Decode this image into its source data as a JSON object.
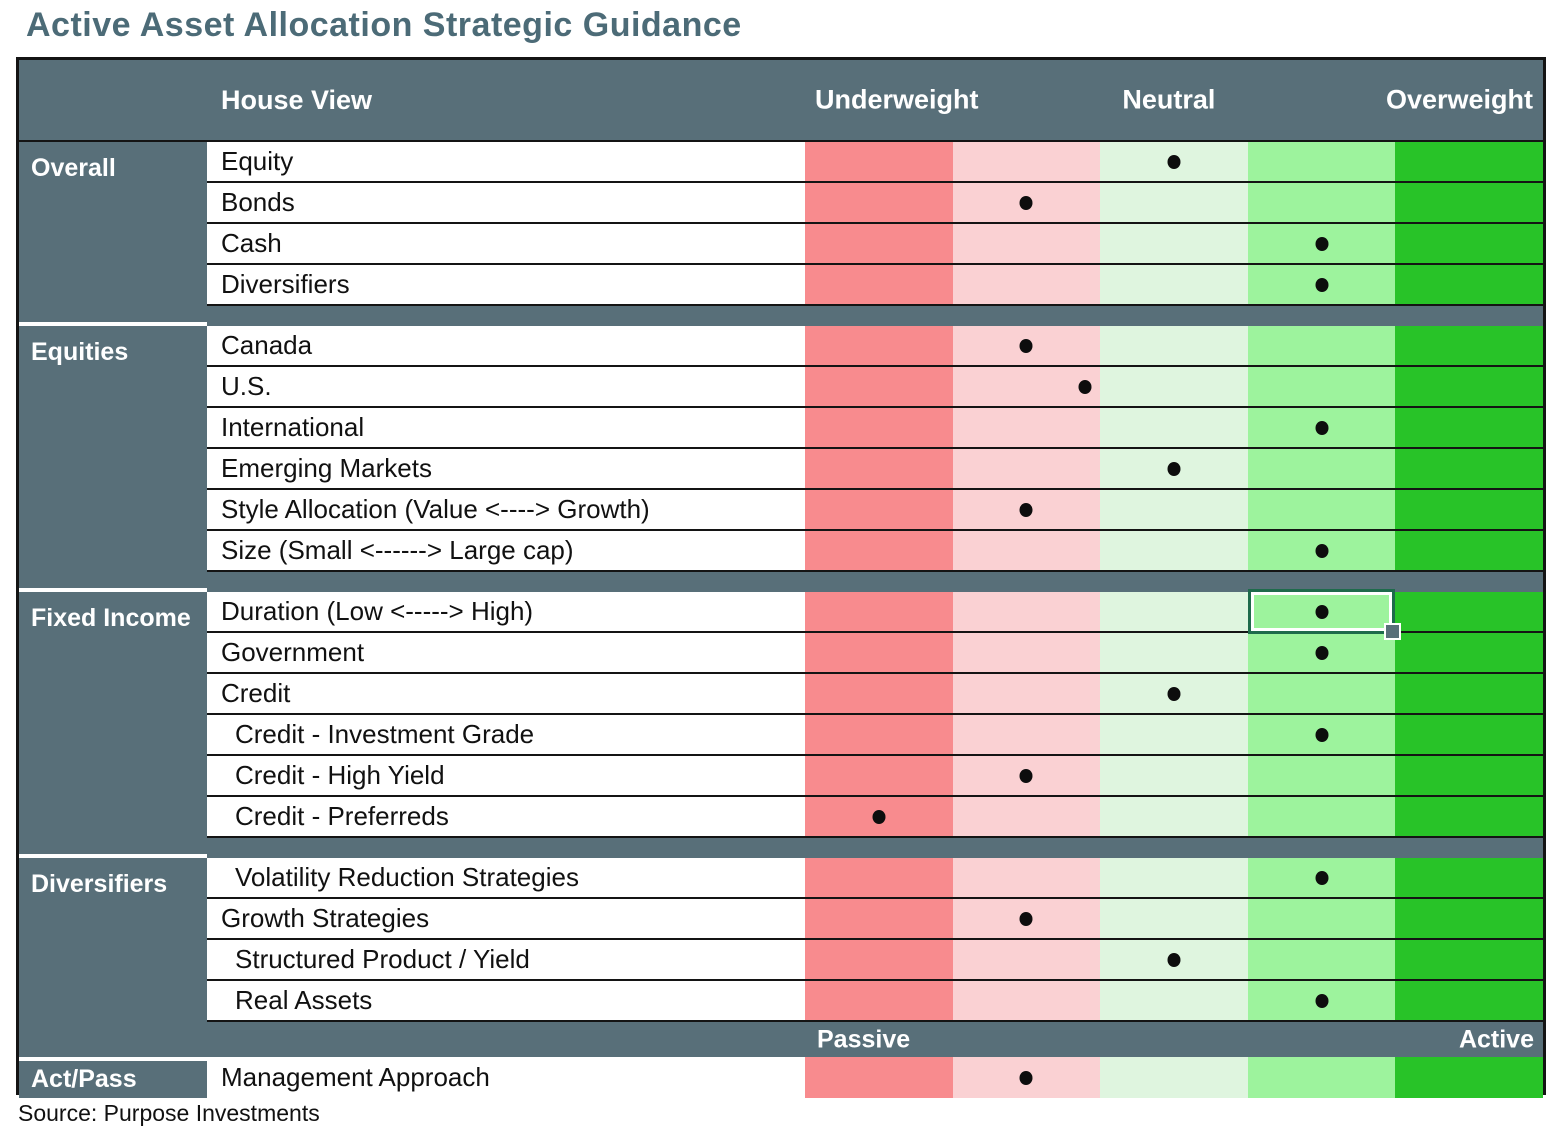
{
  "title": "Active Asset Allocation Strategic Guidance",
  "source": "Source: Purpose Investments",
  "header": {
    "house_view": "House View",
    "underweight": "Underweight",
    "neutral": "Neutral",
    "overweight": "Overweight"
  },
  "band": {
    "passive": "Passive",
    "active": "Active"
  },
  "colors": {
    "slate": "#586F79",
    "title_text": "#4C6B77",
    "line": "#141414",
    "dot": "#0D0D0D",
    "scale": [
      "#F88B8E",
      "#FAD1D3",
      "#DFF5DF",
      "#9DF39D",
      "#28C328"
    ],
    "selection_border": "#1E6B4B",
    "selection_handle": "#586F79"
  },
  "chart_data": {
    "type": "heatmap",
    "title": "Active Asset Allocation Strategic Guidance",
    "column_headers": [
      "Underweight",
      "Neutral",
      "Overweight"
    ],
    "scale_note": "5 shaded columns from strong underweight (red) to strong overweight (green); dot position is percent across the strip, column centers at 10/30/50/70/90",
    "sections": [
      {
        "category": "Overall",
        "rows": [
          {
            "label": "Equity",
            "position_pct": 50
          },
          {
            "label": "Bonds",
            "position_pct": 30
          },
          {
            "label": "Cash",
            "position_pct": 70
          },
          {
            "label": "Diversifiers",
            "position_pct": 70
          }
        ]
      },
      {
        "category": "Equities",
        "rows": [
          {
            "label": "Canada",
            "position_pct": 30
          },
          {
            "label": "U.S.",
            "position_pct": 38
          },
          {
            "label": "International",
            "position_pct": 70
          },
          {
            "label": "Emerging Markets",
            "position_pct": 50
          },
          {
            "label": "Style Allocation (Value <----> Growth)",
            "position_pct": 30
          },
          {
            "label": "Size (Small <------>  Large cap)",
            "position_pct": 70
          }
        ]
      },
      {
        "category": "Fixed Income",
        "rows": [
          {
            "label": "Duration (Low <-----> High)",
            "position_pct": 70,
            "selected": true
          },
          {
            "label": "Government",
            "position_pct": 70
          },
          {
            "label": "Credit",
            "position_pct": 50
          },
          {
            "label": "Credit - Investment Grade",
            "position_pct": 70,
            "indent": true
          },
          {
            "label": "Credit - High Yield",
            "position_pct": 30,
            "indent": true
          },
          {
            "label": "Credit - Preferreds",
            "position_pct": 10,
            "indent": true
          }
        ]
      },
      {
        "category": "Diversifiers",
        "rows": [
          {
            "label": "Volatility Reduction Strategies",
            "position_pct": 70,
            "indent": true
          },
          {
            "label": "Growth Strategies",
            "position_pct": 30
          },
          {
            "label": "Structured Product / Yield",
            "position_pct": 50,
            "indent": true
          },
          {
            "label": "Real Assets",
            "position_pct": 70,
            "indent": true
          }
        ]
      }
    ],
    "footer_scale": {
      "left": "Passive",
      "right": "Active"
    },
    "act_pass": {
      "category": "Act/Pass",
      "row": {
        "label": "Management Approach",
        "position_pct": 30
      }
    }
  }
}
